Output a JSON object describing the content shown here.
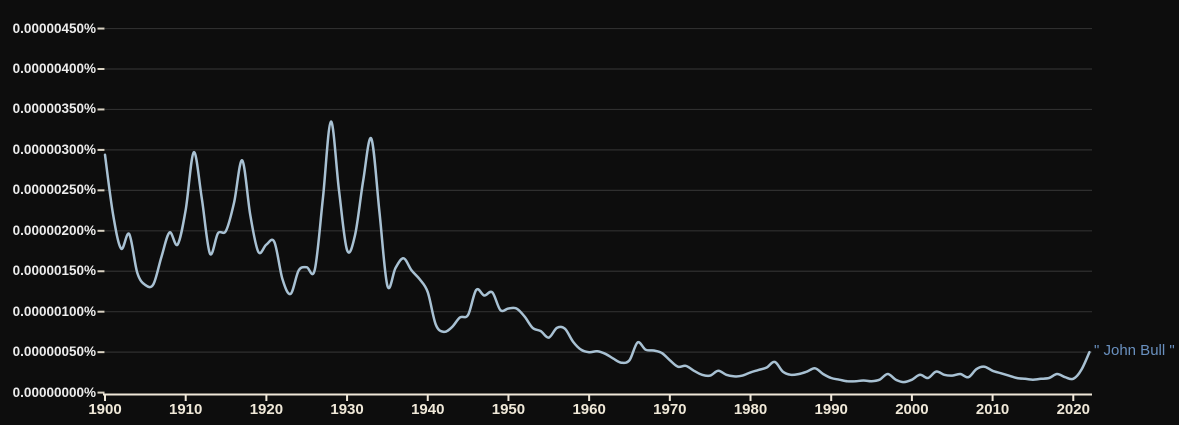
{
  "legend": {
    "label": "\" John Bull \""
  },
  "colors": {
    "background": "#0d0d0d",
    "gridline": "#2f2f2f",
    "axis": "#efe7d8",
    "y_tick_dash": "#d9d2c2",
    "y_tick_label": "#ececec",
    "x_tick_label": "#efe8d8",
    "series_line": "#a8c1d3",
    "legend_text": "#6990bf"
  },
  "chart_data": {
    "type": "line",
    "title": "",
    "xlabel": "",
    "ylabel": "",
    "grid": true,
    "legend_position": "right of line end",
    "x_start_year": 1900,
    "x_end_year": 2022,
    "x_step": 1,
    "x_tick_labels": [
      "1900",
      "1910",
      "1920",
      "1930",
      "1940",
      "1950",
      "1960",
      "1970",
      "1980",
      "1990",
      "2000",
      "2010",
      "2020"
    ],
    "y_tick_labels": [
      "0.00000450%",
      "0.00000400%",
      "0.00000350%",
      "0.00000300%",
      "0.00000250%",
      "0.00000200%",
      "0.00000150%",
      "0.00000100%",
      "0.00000050%",
      "0.00000000%"
    ],
    "y_unit_note": "values stored in 1e-8 percent units; 294 = 0.00000294%",
    "ylim_e8": [
      0,
      450
    ],
    "series": [
      {
        "name": "\" John Bull \"",
        "values_e8": [
          294,
          220,
          178,
          196,
          148,
          133,
          134,
          168,
          198,
          183,
          226,
          297,
          240,
          172,
          197,
          200,
          235,
          287,
          220,
          174,
          183,
          186,
          140,
          122,
          151,
          155,
          152,
          240,
          335,
          250,
          176,
          195,
          262,
          314,
          225,
          132,
          154,
          166,
          151,
          140,
          124,
          84,
          75,
          81,
          93,
          96,
          127,
          120,
          124,
          102,
          104,
          104,
          94,
          80,
          76,
          68,
          80,
          79,
          63,
          53,
          50,
          51,
          48,
          42,
          37,
          40,
          62,
          53,
          52,
          49,
          40,
          32,
          33,
          27,
          22,
          21,
          27,
          22,
          20,
          21,
          25,
          28,
          31,
          38,
          26,
          22,
          23,
          26,
          30,
          23,
          18,
          16,
          14,
          14,
          15,
          14,
          16,
          23,
          16,
          13,
          16,
          22,
          18,
          26,
          22,
          21,
          23,
          19,
          29,
          32,
          27,
          24,
          21,
          18,
          17,
          16,
          17,
          18,
          23,
          19,
          17,
          28,
          50
        ]
      }
    ]
  }
}
